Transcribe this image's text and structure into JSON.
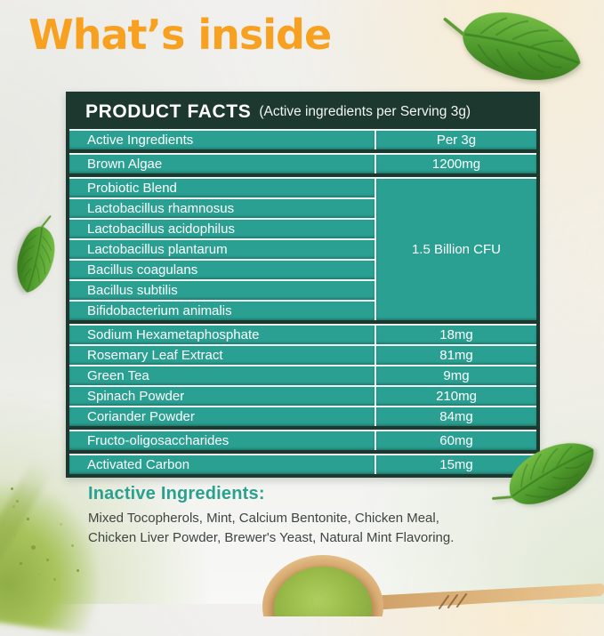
{
  "page": {
    "title": "What’s inside"
  },
  "colors": {
    "title_orange": "#f8a01f",
    "row_teal": "#2aa092",
    "card_dark_green": "#1d392f",
    "separator_white": "#eef5f2",
    "inactive_heading_teal": "#2ba08f",
    "body_text": "#3f4541",
    "leaf_green": "#55a230",
    "powder_green": "#96ba3e",
    "spoon_wood": "#d9ad74"
  },
  "table": {
    "title": "PRODUCT FACTS",
    "subtitle": "(Active ingredients per Serving 3g)",
    "rows": [
      {
        "name": "Active Ingredients",
        "value": "Per 3g"
      },
      {
        "name": "Brown Algae",
        "value": "1200mg",
        "gap_before": true
      },
      {
        "name": "Probiotic Blend",
        "value": "1.5 Billion CFU",
        "value_rowspan": 7,
        "gap_before": true
      },
      {
        "name": "Lactobacillus rhamnosus"
      },
      {
        "name": "Lactobacillus acidophilus"
      },
      {
        "name": "Lactobacillus plantarum"
      },
      {
        "name": "Bacillus coagulans"
      },
      {
        "name": "Bacillus subtilis"
      },
      {
        "name": "Bifidobacterium animalis"
      },
      {
        "name": "Sodium Hexametaphosphate",
        "value": "18mg",
        "gap_before": true
      },
      {
        "name": "Rosemary Leaf Extract",
        "value": "81mg"
      },
      {
        "name": "Green Tea",
        "value": "9mg"
      },
      {
        "name": "Spinach Powder",
        "value": "210mg"
      },
      {
        "name": "Coriander Powder",
        "value": "84mg"
      },
      {
        "name": "Fructo-oligosaccharides",
        "value": "60mg",
        "gap_before": true
      },
      {
        "name": "Activated Carbon",
        "value": "15mg",
        "gap_before": true
      }
    ]
  },
  "inactive": {
    "heading": "Inactive Ingredients:",
    "text": "Mixed Tocopherols, Mint, Calcium Bentonite, Chicken Meal,\nChicken Liver Powder, Brewer's Yeast, Natural Mint Flavoring."
  },
  "decor": {
    "icons": [
      "mint-leaf-icon",
      "wooden-spoon-icon",
      "green-powder-icon"
    ]
  }
}
